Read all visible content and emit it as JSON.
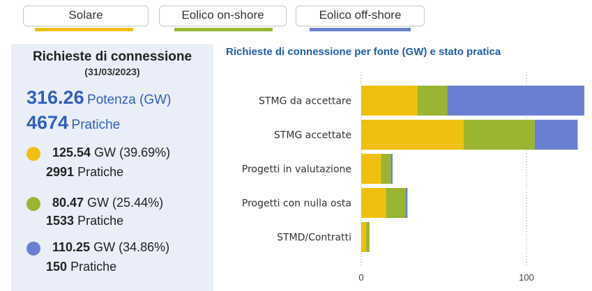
{
  "legend": {
    "items": [
      {
        "label": "Solare",
        "color": "#f0c010"
      },
      {
        "label": "Eolico on-shore",
        "color": "#99b531"
      },
      {
        "label": "Eolico off-shore",
        "color": "#6b7fd2"
      }
    ]
  },
  "summary": {
    "title": "Richieste di connessione",
    "date": "(31/03/2023)",
    "total_power": "316.26",
    "total_power_label": "Potenza (GW)",
    "total_count": "4674",
    "total_count_label": "Pratiche",
    "sources": [
      {
        "gw": "125.54",
        "gw_unit": "GW (39.69%)",
        "count": "2991",
        "count_label": "Pratiche",
        "color": "#f0c010"
      },
      {
        "gw": "80.47",
        "gw_unit": "GW (25.44%)",
        "count": "1533",
        "count_label": "Pratiche",
        "color": "#99b531"
      },
      {
        "gw": "110.25",
        "gw_unit": "GW (34.86%)",
        "count": "150",
        "count_label": "Pratiche",
        "color": "#6b7fd2"
      }
    ]
  },
  "chart_data": {
    "type": "bar",
    "orientation": "horizontal",
    "stacked": true,
    "title": "Richieste di connessione per fonte (GW) e stato pratica",
    "categories": [
      "STMG da accettare",
      "STMG accettate",
      "Progetti in valutazione",
      "Progetti con nulla osta",
      "STMD/Contratti"
    ],
    "series": [
      {
        "name": "Solare",
        "color": "#f0c010",
        "values": [
          34,
          62,
          12,
          15,
          3
        ]
      },
      {
        "name": "Eolico on-shore",
        "color": "#99b531",
        "values": [
          18,
          43,
          6,
          12,
          2
        ]
      },
      {
        "name": "Eolico off-shore",
        "color": "#6b7fd2",
        "values": [
          83,
          26,
          1,
          1,
          0
        ]
      }
    ],
    "xlim": [
      0,
      135
    ],
    "xticks": [
      0,
      100
    ],
    "grid": true
  }
}
